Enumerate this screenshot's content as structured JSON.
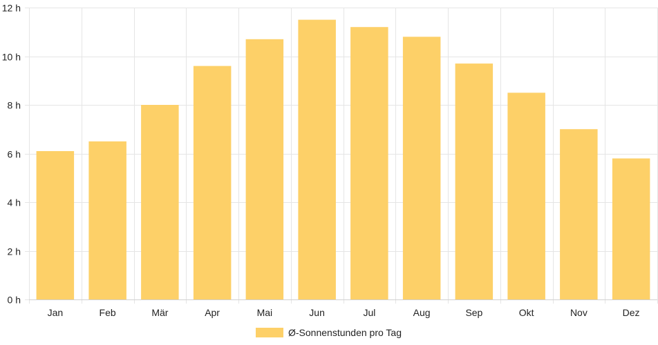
{
  "chart_data": {
    "type": "bar",
    "categories": [
      "Jan",
      "Feb",
      "Mär",
      "Apr",
      "Mai",
      "Jun",
      "Jul",
      "Aug",
      "Sep",
      "Okt",
      "Nov",
      "Dez"
    ],
    "series": [
      {
        "name": "Ø-Sonnenstunden pro Tag",
        "values": [
          6.1,
          6.5,
          8.0,
          9.6,
          10.7,
          11.5,
          11.2,
          10.8,
          9.7,
          8.5,
          7.0,
          5.8
        ],
        "color": "#fdd068"
      }
    ],
    "y_ticks": [
      "0 h",
      "2 h",
      "4 h",
      "6 h",
      "8 h",
      "10 h",
      "12 h"
    ],
    "ylim": [
      0,
      12
    ],
    "grid": true,
    "legend_position": "bottom"
  }
}
